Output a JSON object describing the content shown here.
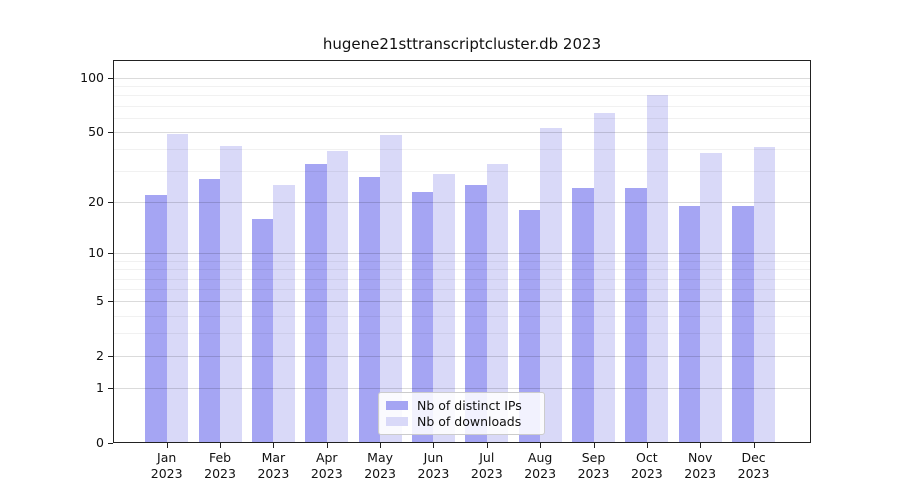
{
  "chart_data": {
    "type": "bar",
    "title": "hugene21sttranscriptcluster.db 2023",
    "categories": [
      "Jan",
      "Feb",
      "Mar",
      "Apr",
      "May",
      "Jun",
      "Jul",
      "Aug",
      "Sep",
      "Oct",
      "Nov",
      "Dec"
    ],
    "category_year": "2023",
    "series": [
      {
        "name": "Nb of distinct IPs",
        "color": "#a5a5f3",
        "values": [
          22,
          27,
          16,
          33,
          28,
          23,
          25,
          18,
          24,
          24,
          19,
          19
        ]
      },
      {
        "name": "Nb of downloads",
        "color": "#d9d9f8",
        "values": [
          49,
          42,
          25,
          39,
          48,
          29,
          33,
          53,
          64,
          80,
          38,
          41
        ]
      }
    ],
    "yscale": "log1p",
    "ylim": [
      0,
      127
    ],
    "y_ticks": [
      0,
      1,
      2,
      5,
      10,
      20,
      50,
      100
    ],
    "y_minor_ticks": [
      3,
      4,
      6,
      7,
      8,
      9,
      30,
      40,
      60,
      70,
      80,
      90
    ],
    "grid": true,
    "legend_position": "lower center inside"
  },
  "colors": {
    "axis": "#222222",
    "text": "#111111",
    "distinct_ips_bar": "#a5a5f3",
    "downloads_bar": "#d9d9f8"
  }
}
